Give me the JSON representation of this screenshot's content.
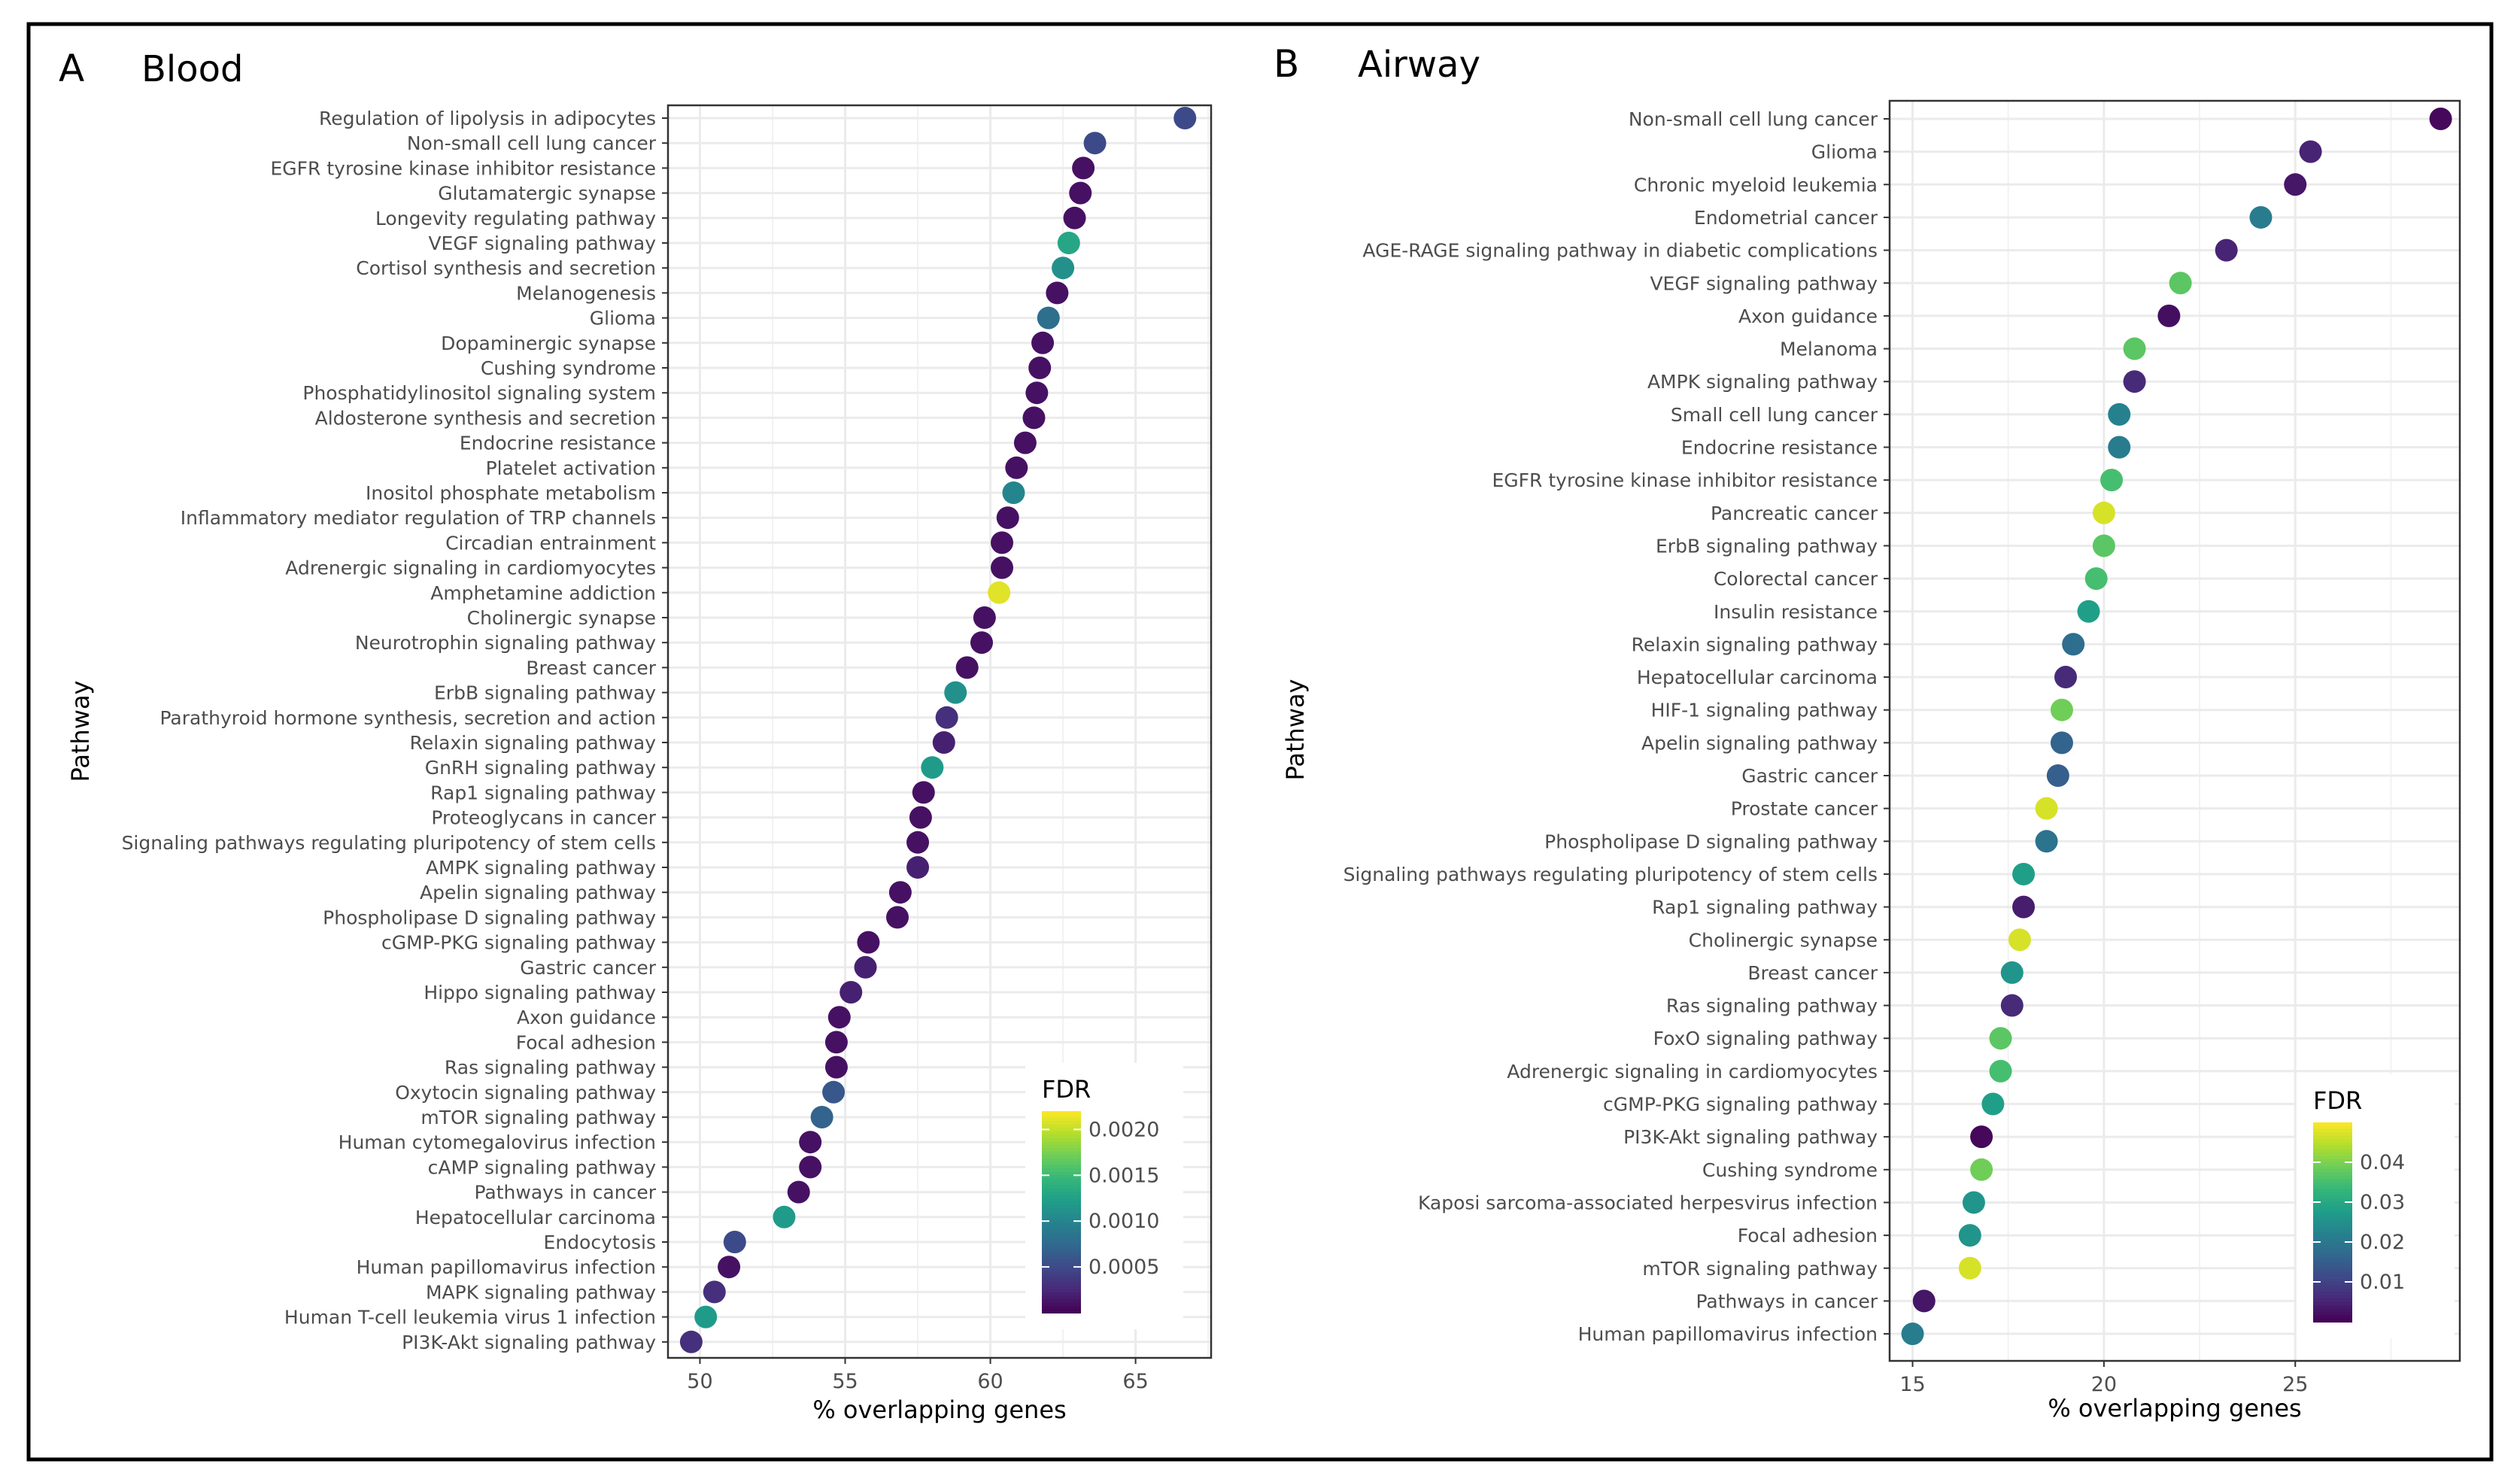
{
  "colormap": [
    "#440154",
    "#482878",
    "#3e4989",
    "#31688e",
    "#26828e",
    "#1f9e89",
    "#35b779",
    "#6ece58",
    "#b5de2b",
    "#fde725"
  ],
  "chart_data": [
    {
      "type": "scatter",
      "panel_letter": "A",
      "title": "Blood",
      "xlabel": "% overlapping genes",
      "ylabel": "Pathway",
      "xlim": [
        48.9,
        67.6
      ],
      "xticks": [
        50,
        55,
        60,
        65
      ],
      "xtick_labels": [
        "50",
        "55",
        "60",
        "65"
      ],
      "legend": {
        "title": "FDR",
        "range": [
          0,
          0.0022
        ],
        "ticks": [
          0.0005,
          0.001,
          0.0015,
          0.002
        ],
        "tick_labels": [
          "0.0005",
          "0.0010",
          "0.0015",
          "0.0020"
        ],
        "position": "bottom-right"
      },
      "points": [
        {
          "label": "Regulation of lipolysis in adipocytes",
          "x": 66.7,
          "fdr": 0.0005
        },
        {
          "label": "Non-small cell lung cancer",
          "x": 63.6,
          "fdr": 0.0005
        },
        {
          "label": "EGFR tyrosine kinase inhibitor resistance",
          "x": 63.2,
          "fdr": 0.0001
        },
        {
          "label": "Glutamatergic synapse",
          "x": 63.1,
          "fdr": 0.0001
        },
        {
          "label": "Longevity regulating pathway",
          "x": 62.9,
          "fdr": 0.0001
        },
        {
          "label": "VEGF signaling pathway",
          "x": 62.7,
          "fdr": 0.0013
        },
        {
          "label": "Cortisol synthesis and secretion",
          "x": 62.5,
          "fdr": 0.0011
        },
        {
          "label": "Melanogenesis",
          "x": 62.3,
          "fdr": 0.0001
        },
        {
          "label": "Glioma",
          "x": 62.0,
          "fdr": 0.0008
        },
        {
          "label": "Dopaminergic synapse",
          "x": 61.8,
          "fdr": 0.0001
        },
        {
          "label": "Cushing syndrome",
          "x": 61.7,
          "fdr": 0.0001
        },
        {
          "label": "Phosphatidylinositol signaling system",
          "x": 61.6,
          "fdr": 0.0001
        },
        {
          "label": "Aldosterone synthesis and secretion",
          "x": 61.5,
          "fdr": 0.0001
        },
        {
          "label": "Endocrine resistance",
          "x": 61.2,
          "fdr": 0.0001
        },
        {
          "label": "Platelet activation",
          "x": 60.9,
          "fdr": 0.0001
        },
        {
          "label": "Inositol phosphate metabolism",
          "x": 60.8,
          "fdr": 0.001
        },
        {
          "label": "Inflammatory mediator regulation of TRP channels",
          "x": 60.6,
          "fdr": 0.0001
        },
        {
          "label": "Circadian entrainment",
          "x": 60.4,
          "fdr": 0.0001
        },
        {
          "label": "Adrenergic signaling in cardiomyocytes",
          "x": 60.4,
          "fdr": 0.0001
        },
        {
          "label": "Amphetamine addiction",
          "x": 60.3,
          "fdr": 0.0021
        },
        {
          "label": "Cholinergic synapse",
          "x": 59.8,
          "fdr": 0.0001
        },
        {
          "label": "Neurotrophin signaling pathway",
          "x": 59.7,
          "fdr": 0.0001
        },
        {
          "label": "Breast cancer",
          "x": 59.2,
          "fdr": 0.0001
        },
        {
          "label": "ErbB signaling pathway",
          "x": 58.8,
          "fdr": 0.0011
        },
        {
          "label": "Parathyroid hormone synthesis, secretion and action",
          "x": 58.5,
          "fdr": 0.0003
        },
        {
          "label": "Relaxin signaling pathway",
          "x": 58.4,
          "fdr": 0.0002
        },
        {
          "label": "GnRH signaling pathway",
          "x": 58.0,
          "fdr": 0.0012
        },
        {
          "label": "Rap1 signaling pathway",
          "x": 57.7,
          "fdr": 0.0001
        },
        {
          "label": "Proteoglycans in cancer",
          "x": 57.6,
          "fdr": 0.0001
        },
        {
          "label": "Signaling pathways regulating pluripotency of stem cells",
          "x": 57.5,
          "fdr": 0.0001
        },
        {
          "label": "AMPK signaling pathway",
          "x": 57.5,
          "fdr": 0.0002
        },
        {
          "label": "Apelin signaling pathway",
          "x": 56.9,
          "fdr": 0.0001
        },
        {
          "label": "Phospholipase D signaling pathway",
          "x": 56.8,
          "fdr": 0.0001
        },
        {
          "label": "cGMP-PKG signaling pathway",
          "x": 55.8,
          "fdr": 0.0001
        },
        {
          "label": "Gastric cancer",
          "x": 55.7,
          "fdr": 0.0002
        },
        {
          "label": "Hippo signaling pathway",
          "x": 55.2,
          "fdr": 0.0002
        },
        {
          "label": "Axon guidance",
          "x": 54.8,
          "fdr": 0.0001
        },
        {
          "label": "Focal adhesion",
          "x": 54.7,
          "fdr": 0.0001
        },
        {
          "label": "Ras signaling pathway",
          "x": 54.7,
          "fdr": 0.0001
        },
        {
          "label": "Oxytocin signaling pathway",
          "x": 54.6,
          "fdr": 0.0006
        },
        {
          "label": "mTOR signaling pathway",
          "x": 54.2,
          "fdr": 0.0007
        },
        {
          "label": "Human cytomegalovirus infection",
          "x": 53.8,
          "fdr": 0.0001
        },
        {
          "label": "cAMP signaling pathway",
          "x": 53.8,
          "fdr": 0.0001
        },
        {
          "label": "Pathways in cancer",
          "x": 53.4,
          "fdr": 0.0001
        },
        {
          "label": "Hepatocellular carcinoma",
          "x": 52.9,
          "fdr": 0.0012
        },
        {
          "label": "Endocytosis",
          "x": 51.2,
          "fdr": 0.0005
        },
        {
          "label": "Human papillomavirus infection",
          "x": 51.0,
          "fdr": 0.0001
        },
        {
          "label": "MAPK signaling pathway",
          "x": 50.5,
          "fdr": 0.0003
        },
        {
          "label": "Human T-cell leukemia virus 1 infection",
          "x": 50.2,
          "fdr": 0.0012
        },
        {
          "label": "PI3K-Akt signaling pathway",
          "x": 49.7,
          "fdr": 0.0003
        }
      ]
    },
    {
      "type": "scatter",
      "panel_letter": "B",
      "title": "Airway",
      "xlabel": "% overlapping genes",
      "ylabel": "Pathway",
      "xlim": [
        14.4,
        29.3
      ],
      "xticks": [
        15,
        20,
        25
      ],
      "xtick_labels": [
        "15",
        "20",
        "25"
      ],
      "legend": {
        "title": "FDR",
        "range": [
          0,
          0.05
        ],
        "ticks": [
          0.01,
          0.02,
          0.03,
          0.04
        ],
        "tick_labels": [
          "0.01",
          "0.02",
          "0.03",
          "0.04"
        ],
        "position": "bottom-right"
      },
      "points": [
        {
          "label": "Non-small cell lung cancer",
          "x": 28.8,
          "fdr": 0.001
        },
        {
          "label": "Glioma",
          "x": 25.4,
          "fdr": 0.005
        },
        {
          "label": "Chronic myeloid leukemia",
          "x": 25.0,
          "fdr": 0.003
        },
        {
          "label": "Endometrial cancer",
          "x": 24.1,
          "fdr": 0.021
        },
        {
          "label": "AGE-RAGE signaling pathway in diabetic complications",
          "x": 23.2,
          "fdr": 0.005
        },
        {
          "label": "VEGF signaling pathway",
          "x": 22.0,
          "fdr": 0.037
        },
        {
          "label": "Axon guidance",
          "x": 21.7,
          "fdr": 0.002
        },
        {
          "label": "Melanoma",
          "x": 20.8,
          "fdr": 0.037
        },
        {
          "label": "AMPK signaling pathway",
          "x": 20.8,
          "fdr": 0.006
        },
        {
          "label": "Small cell lung cancer",
          "x": 20.4,
          "fdr": 0.022
        },
        {
          "label": "Endocrine resistance",
          "x": 20.4,
          "fdr": 0.021
        },
        {
          "label": "EGFR tyrosine kinase inhibitor resistance",
          "x": 20.2,
          "fdr": 0.035
        },
        {
          "label": "Pancreatic cancer",
          "x": 20.0,
          "fdr": 0.047
        },
        {
          "label": "ErbB signaling pathway",
          "x": 20.0,
          "fdr": 0.037
        },
        {
          "label": "Colorectal cancer",
          "x": 19.8,
          "fdr": 0.035
        },
        {
          "label": "Insulin resistance",
          "x": 19.6,
          "fdr": 0.028
        },
        {
          "label": "Relaxin signaling pathway",
          "x": 19.2,
          "fdr": 0.018
        },
        {
          "label": "Hepatocellular carcinoma",
          "x": 19.0,
          "fdr": 0.006
        },
        {
          "label": "HIF-1 signaling pathway",
          "x": 18.9,
          "fdr": 0.039
        },
        {
          "label": "Apelin signaling pathway",
          "x": 18.9,
          "fdr": 0.016
        },
        {
          "label": "Gastric cancer",
          "x": 18.8,
          "fdr": 0.015
        },
        {
          "label": "Prostate cancer",
          "x": 18.5,
          "fdr": 0.047
        },
        {
          "label": "Phospholipase D signaling pathway",
          "x": 18.5,
          "fdr": 0.019
        },
        {
          "label": "Signaling pathways regulating pluripotency of stem cells",
          "x": 17.9,
          "fdr": 0.028
        },
        {
          "label": "Rap1 signaling pathway",
          "x": 17.9,
          "fdr": 0.004
        },
        {
          "label": "Cholinergic synapse",
          "x": 17.8,
          "fdr": 0.047
        },
        {
          "label": "Breast cancer",
          "x": 17.6,
          "fdr": 0.026
        },
        {
          "label": "Ras signaling pathway",
          "x": 17.6,
          "fdr": 0.006
        },
        {
          "label": "FoxO signaling pathway",
          "x": 17.3,
          "fdr": 0.037
        },
        {
          "label": "Adrenergic signaling in cardiomyocytes",
          "x": 17.3,
          "fdr": 0.035
        },
        {
          "label": "cGMP-PKG signaling pathway",
          "x": 17.1,
          "fdr": 0.028
        },
        {
          "label": "PI3K-Akt signaling pathway",
          "x": 16.8,
          "fdr": 0.001
        },
        {
          "label": "Cushing syndrome",
          "x": 16.8,
          "fdr": 0.039
        },
        {
          "label": "Kaposi sarcoma-associated herpesvirus infection",
          "x": 16.6,
          "fdr": 0.026
        },
        {
          "label": "Focal adhesion",
          "x": 16.5,
          "fdr": 0.026
        },
        {
          "label": "mTOR signaling pathway",
          "x": 16.5,
          "fdr": 0.047
        },
        {
          "label": "Pathways in cancer",
          "x": 15.3,
          "fdr": 0.003
        },
        {
          "label": "Human papillomavirus infection",
          "x": 15.0,
          "fdr": 0.021
        }
      ]
    }
  ]
}
